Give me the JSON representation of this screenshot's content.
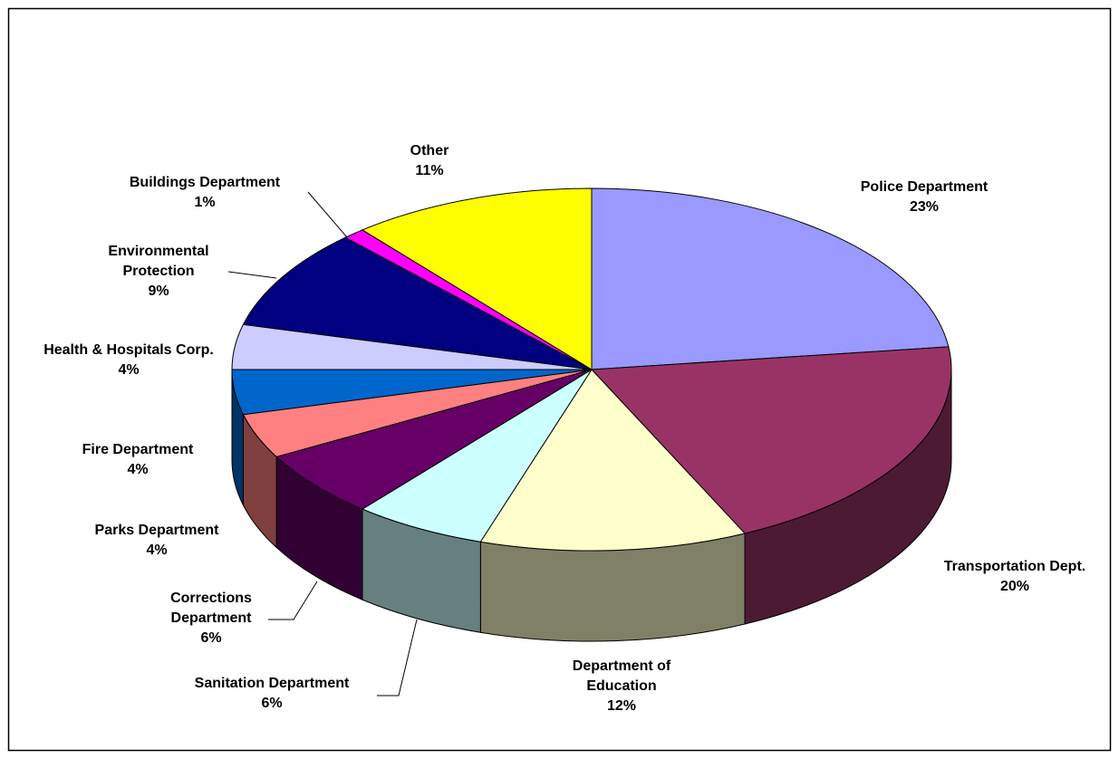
{
  "chart_data": {
    "type": "pie3d",
    "categories": [
      "Police Department",
      "Transportation Dept.",
      "Department of Education",
      "Sanitation Department",
      "Corrections Department",
      "Parks Department",
      "Fire Department",
      "Health & Hospitals Corp.",
      "Environmental Protection",
      "Buildings Department",
      "Other"
    ],
    "values": [
      23,
      20,
      12,
      6,
      6,
      4,
      4,
      4,
      9,
      1,
      11
    ],
    "value_labels": [
      "23%",
      "20%",
      "12%",
      "6%",
      "6%",
      "4%",
      "4%",
      "4%",
      "9%",
      "1%",
      "11%"
    ],
    "colors": [
      "#9999ff",
      "#993366",
      "#ffffcc",
      "#ccffff",
      "#660066",
      "#ff8080",
      "#0066cc",
      "#ccccff",
      "#000080",
      "#ff00ff",
      "#ffff00"
    ]
  }
}
